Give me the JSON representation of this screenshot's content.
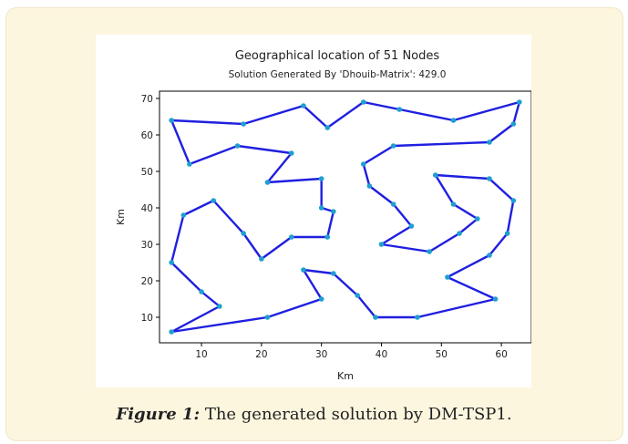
{
  "figure_caption": {
    "lead": "Figure 1:",
    "text": " The generated solution by DM-TSP1."
  },
  "colors": {
    "route": "#1f1fe0",
    "node": "#1f9fd0",
    "card_bg": "#fdf6df"
  },
  "chart_data": {
    "type": "line",
    "title": "Geographical location of 51 Nodes",
    "subtitle": "Solution Generated By 'Dhouib-Matrix': 429.0",
    "xlabel": "Km",
    "ylabel": "Km",
    "xlim": [
      3,
      65
    ],
    "ylim": [
      3,
      72
    ],
    "xticks": [
      10,
      20,
      30,
      40,
      50,
      60
    ],
    "yticks": [
      10,
      20,
      30,
      40,
      50,
      60,
      70
    ],
    "grid": false,
    "tour": [
      [
        5,
        64
      ],
      [
        17,
        63
      ],
      [
        27,
        68
      ],
      [
        31,
        62
      ],
      [
        37,
        69
      ],
      [
        43,
        67
      ],
      [
        52,
        64
      ],
      [
        63,
        69
      ],
      [
        62,
        63
      ],
      [
        58,
        58
      ],
      [
        42,
        57
      ],
      [
        37,
        52
      ],
      [
        38,
        46
      ],
      [
        42,
        41
      ],
      [
        45,
        35
      ],
      [
        40,
        30
      ],
      [
        48,
        28
      ],
      [
        53,
        33
      ],
      [
        56,
        37
      ],
      [
        52,
        41
      ],
      [
        49,
        49
      ],
      [
        58,
        48
      ],
      [
        62,
        42
      ],
      [
        61,
        33
      ],
      [
        58,
        27
      ],
      [
        51,
        21
      ],
      [
        59,
        15
      ],
      [
        46,
        10
      ],
      [
        39,
        10
      ],
      [
        36,
        16
      ],
      [
        32,
        22
      ],
      [
        27,
        23
      ],
      [
        30,
        15
      ],
      [
        21,
        10
      ],
      [
        5,
        6
      ],
      [
        13,
        13
      ],
      [
        10,
        17
      ],
      [
        5,
        25
      ],
      [
        7,
        38
      ],
      [
        12,
        42
      ],
      [
        17,
        33
      ],
      [
        20,
        26
      ],
      [
        25,
        32
      ],
      [
        31,
        32
      ],
      [
        32,
        39
      ],
      [
        30,
        40
      ],
      [
        30,
        48
      ],
      [
        21,
        47
      ],
      [
        25,
        55
      ],
      [
        16,
        57
      ],
      [
        8,
        52
      ],
      [
        5,
        64
      ]
    ]
  }
}
